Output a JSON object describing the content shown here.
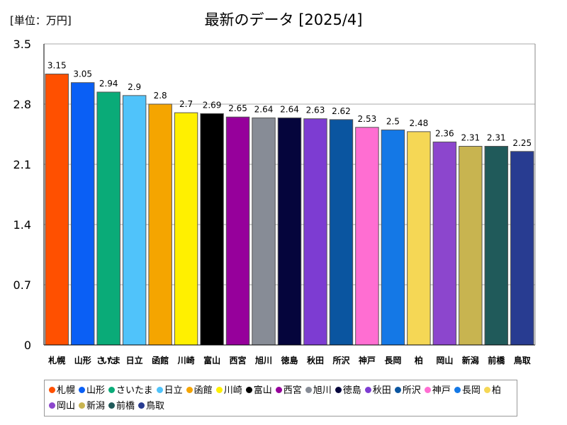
{
  "chart_data": {
    "type": "bar",
    "title": "最新のデータ [2025/4]",
    "unit_label": "[単位：万円]",
    "xlabel": "",
    "ylabel": "",
    "ylim": [
      0,
      3.5
    ],
    "yticks": [
      0,
      0.7,
      1.4,
      2.1,
      2.8,
      3.5
    ],
    "ytick_labels": [
      "0",
      "0.7",
      "1.4",
      "2.1",
      "2.8",
      "3.5"
    ],
    "grid": true,
    "categories": [
      "札幌",
      "山形",
      "さいたま",
      "日立",
      "函館",
      "川崎",
      "富山",
      "西宮",
      "旭川",
      "徳島",
      "秋田",
      "所沢",
      "神戸",
      "長岡",
      "柏",
      "岡山",
      "新潟",
      "前橋",
      "鳥取"
    ],
    "values": [
      3.15,
      3.05,
      2.94,
      2.9,
      2.8,
      2.7,
      2.69,
      2.65,
      2.64,
      2.64,
      2.63,
      2.62,
      2.53,
      2.5,
      2.48,
      2.36,
      2.31,
      2.31,
      2.25
    ],
    "value_labels": [
      "3.15",
      "3.05",
      "2.94",
      "2.9",
      "2.8",
      "2.7",
      "2.69",
      "2.65",
      "2.64",
      "2.64",
      "2.63",
      "2.62",
      "2.53",
      "2.5",
      "2.48",
      "2.36",
      "2.31",
      "2.31",
      "2.25"
    ],
    "colors": [
      "#ff5000",
      "#0a5ff5",
      "#0aab78",
      "#50c3fa",
      "#f5a500",
      "#fff000",
      "#000000",
      "#96009b",
      "#878c96",
      "#05053c",
      "#7d3cd2",
      "#0a55a0",
      "#ff6ed2",
      "#1478e6",
      "#f5d755",
      "#8c46cd",
      "#c8b450",
      "#205a5a",
      "#283c91"
    ],
    "legend": {
      "position": "bottom",
      "entries": [
        "札幌",
        "山形",
        "さいたま",
        "日立",
        "函館",
        "川崎",
        "富山",
        "西宮",
        "旭川",
        "徳島",
        "秋田",
        "所沢",
        "神戸",
        "長岡",
        "柏",
        "岡山",
        "新潟",
        "前橋",
        "鳥取"
      ]
    }
  }
}
